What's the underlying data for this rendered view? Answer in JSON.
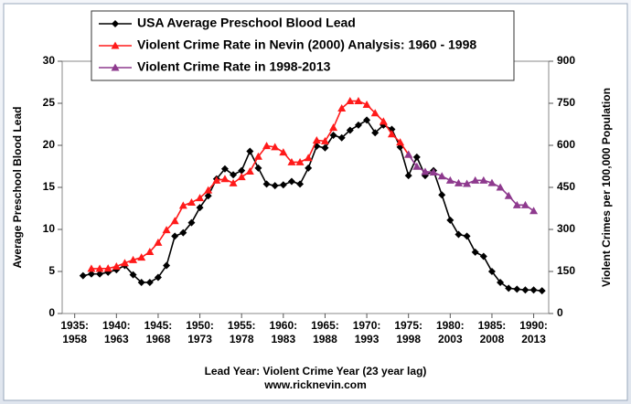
{
  "chart_data": {
    "type": "line",
    "x_label": "Lead Year: Violent Crime Year (23 year lag)",
    "source": "www.ricknevin.com",
    "y_label": "Average Preschool Blood Lead",
    "y2_label": "Violent Crimes per 100,000 Population",
    "xlim": [
      1933.5,
      1991.8
    ],
    "xticks": [
      {
        "value": 1935,
        "label": "1935:\n1958"
      },
      {
        "value": 1940,
        "label": "1940:\n1963"
      },
      {
        "value": 1945,
        "label": "1945:\n1968"
      },
      {
        "value": 1950,
        "label": "1950:\n1973"
      },
      {
        "value": 1955,
        "label": "1955:\n1978"
      },
      {
        "value": 1960,
        "label": "1960:\n1983"
      },
      {
        "value": 1965,
        "label": "1965:\n1988"
      },
      {
        "value": 1970,
        "label": "1970:\n1993"
      },
      {
        "value": 1975,
        "label": "1975:\n1998"
      },
      {
        "value": 1980,
        "label": "1980:\n2003"
      },
      {
        "value": 1985,
        "label": "1985:\n2008"
      },
      {
        "value": 1990,
        "label": "1990:\n2013"
      }
    ],
    "ylim": [
      0,
      30
    ],
    "yticks": [
      0,
      5,
      10,
      15,
      20,
      25,
      30
    ],
    "y2lim": [
      0,
      900
    ],
    "y2ticks": [
      0,
      150,
      300,
      450,
      600,
      750,
      900
    ],
    "series": [
      {
        "name": "USA Average Preschool Blood Lead",
        "color": "#000000",
        "marker": "diamond",
        "x": [
          1936,
          1937,
          1938,
          1939,
          1940,
          1941,
          1942,
          1943,
          1944,
          1945,
          1946,
          1947,
          1948,
          1949,
          1950,
          1951,
          1952,
          1953,
          1954,
          1955,
          1956,
          1957,
          1958,
          1959,
          1960,
          1961,
          1962,
          1963,
          1964,
          1965,
          1966,
          1967,
          1968,
          1969,
          1970,
          1971,
          1972,
          1973,
          1974,
          1975,
          1976,
          1977,
          1978,
          1979,
          1980,
          1981,
          1982,
          1983,
          1984,
          1985,
          1986,
          1987,
          1988,
          1989,
          1990,
          1991
        ],
        "values": [
          4.5,
          4.7,
          4.7,
          4.9,
          5.2,
          5.7,
          4.6,
          3.7,
          3.7,
          4.3,
          5.7,
          9.2,
          9.6,
          10.8,
          12.6,
          14.0,
          16.0,
          17.2,
          16.5,
          17.0,
          19.3,
          17.3,
          15.4,
          15.2,
          15.3,
          15.7,
          15.4,
          17.3,
          19.9,
          19.7,
          21.2,
          20.9,
          21.8,
          22.4,
          23.0,
          21.5,
          22.4,
          21.9,
          19.8,
          16.4,
          18.6,
          16.4,
          17.0,
          14.1,
          11.1,
          9.4,
          9.2,
          7.3,
          6.8,
          5.0,
          3.7,
          3.0,
          2.9,
          2.8,
          2.8,
          2.7
        ]
      },
      {
        "name": "Violent Crime Rate in Nevin (2000) Analysis: 1960 - 1998",
        "color": "#ff1a1a",
        "marker": "triangle",
        "axis": "y2",
        "x": [
          1937,
          1938,
          1939,
          1940,
          1941,
          1942,
          1943,
          1944,
          1945,
          1946,
          1947,
          1948,
          1949,
          1950,
          1951,
          1952,
          1953,
          1954,
          1955,
          1956,
          1957,
          1958,
          1959,
          1960,
          1961,
          1962,
          1963,
          1964,
          1965,
          1966,
          1967,
          1968,
          1969,
          1970,
          1971,
          1972,
          1973,
          1974,
          1975
        ],
        "values": [
          160,
          160,
          161,
          168,
          180,
          191,
          200,
          220,
          253,
          298,
          330,
          385,
          396,
          412,
          440,
          475,
          480,
          465,
          487,
          507,
          560,
          598,
          594,
          575,
          540,
          540,
          555,
          618,
          615,
          663,
          732,
          758,
          758,
          745,
          715,
          685,
          640,
          611,
          567
        ]
      },
      {
        "name": "Violent Crime Rate in 1998-2013",
        "color": "#8e3a8e",
        "marker": "triangle",
        "axis": "y2",
        "x": [
          1975,
          1976,
          1977,
          1978,
          1979,
          1980,
          1981,
          1982,
          1983,
          1984,
          1985,
          1986,
          1987,
          1988,
          1989,
          1990
        ],
        "values": [
          567,
          524,
          506,
          504,
          490,
          475,
          465,
          463,
          475,
          475,
          466,
          450,
          420,
          387,
          387,
          366
        ]
      }
    ]
  }
}
